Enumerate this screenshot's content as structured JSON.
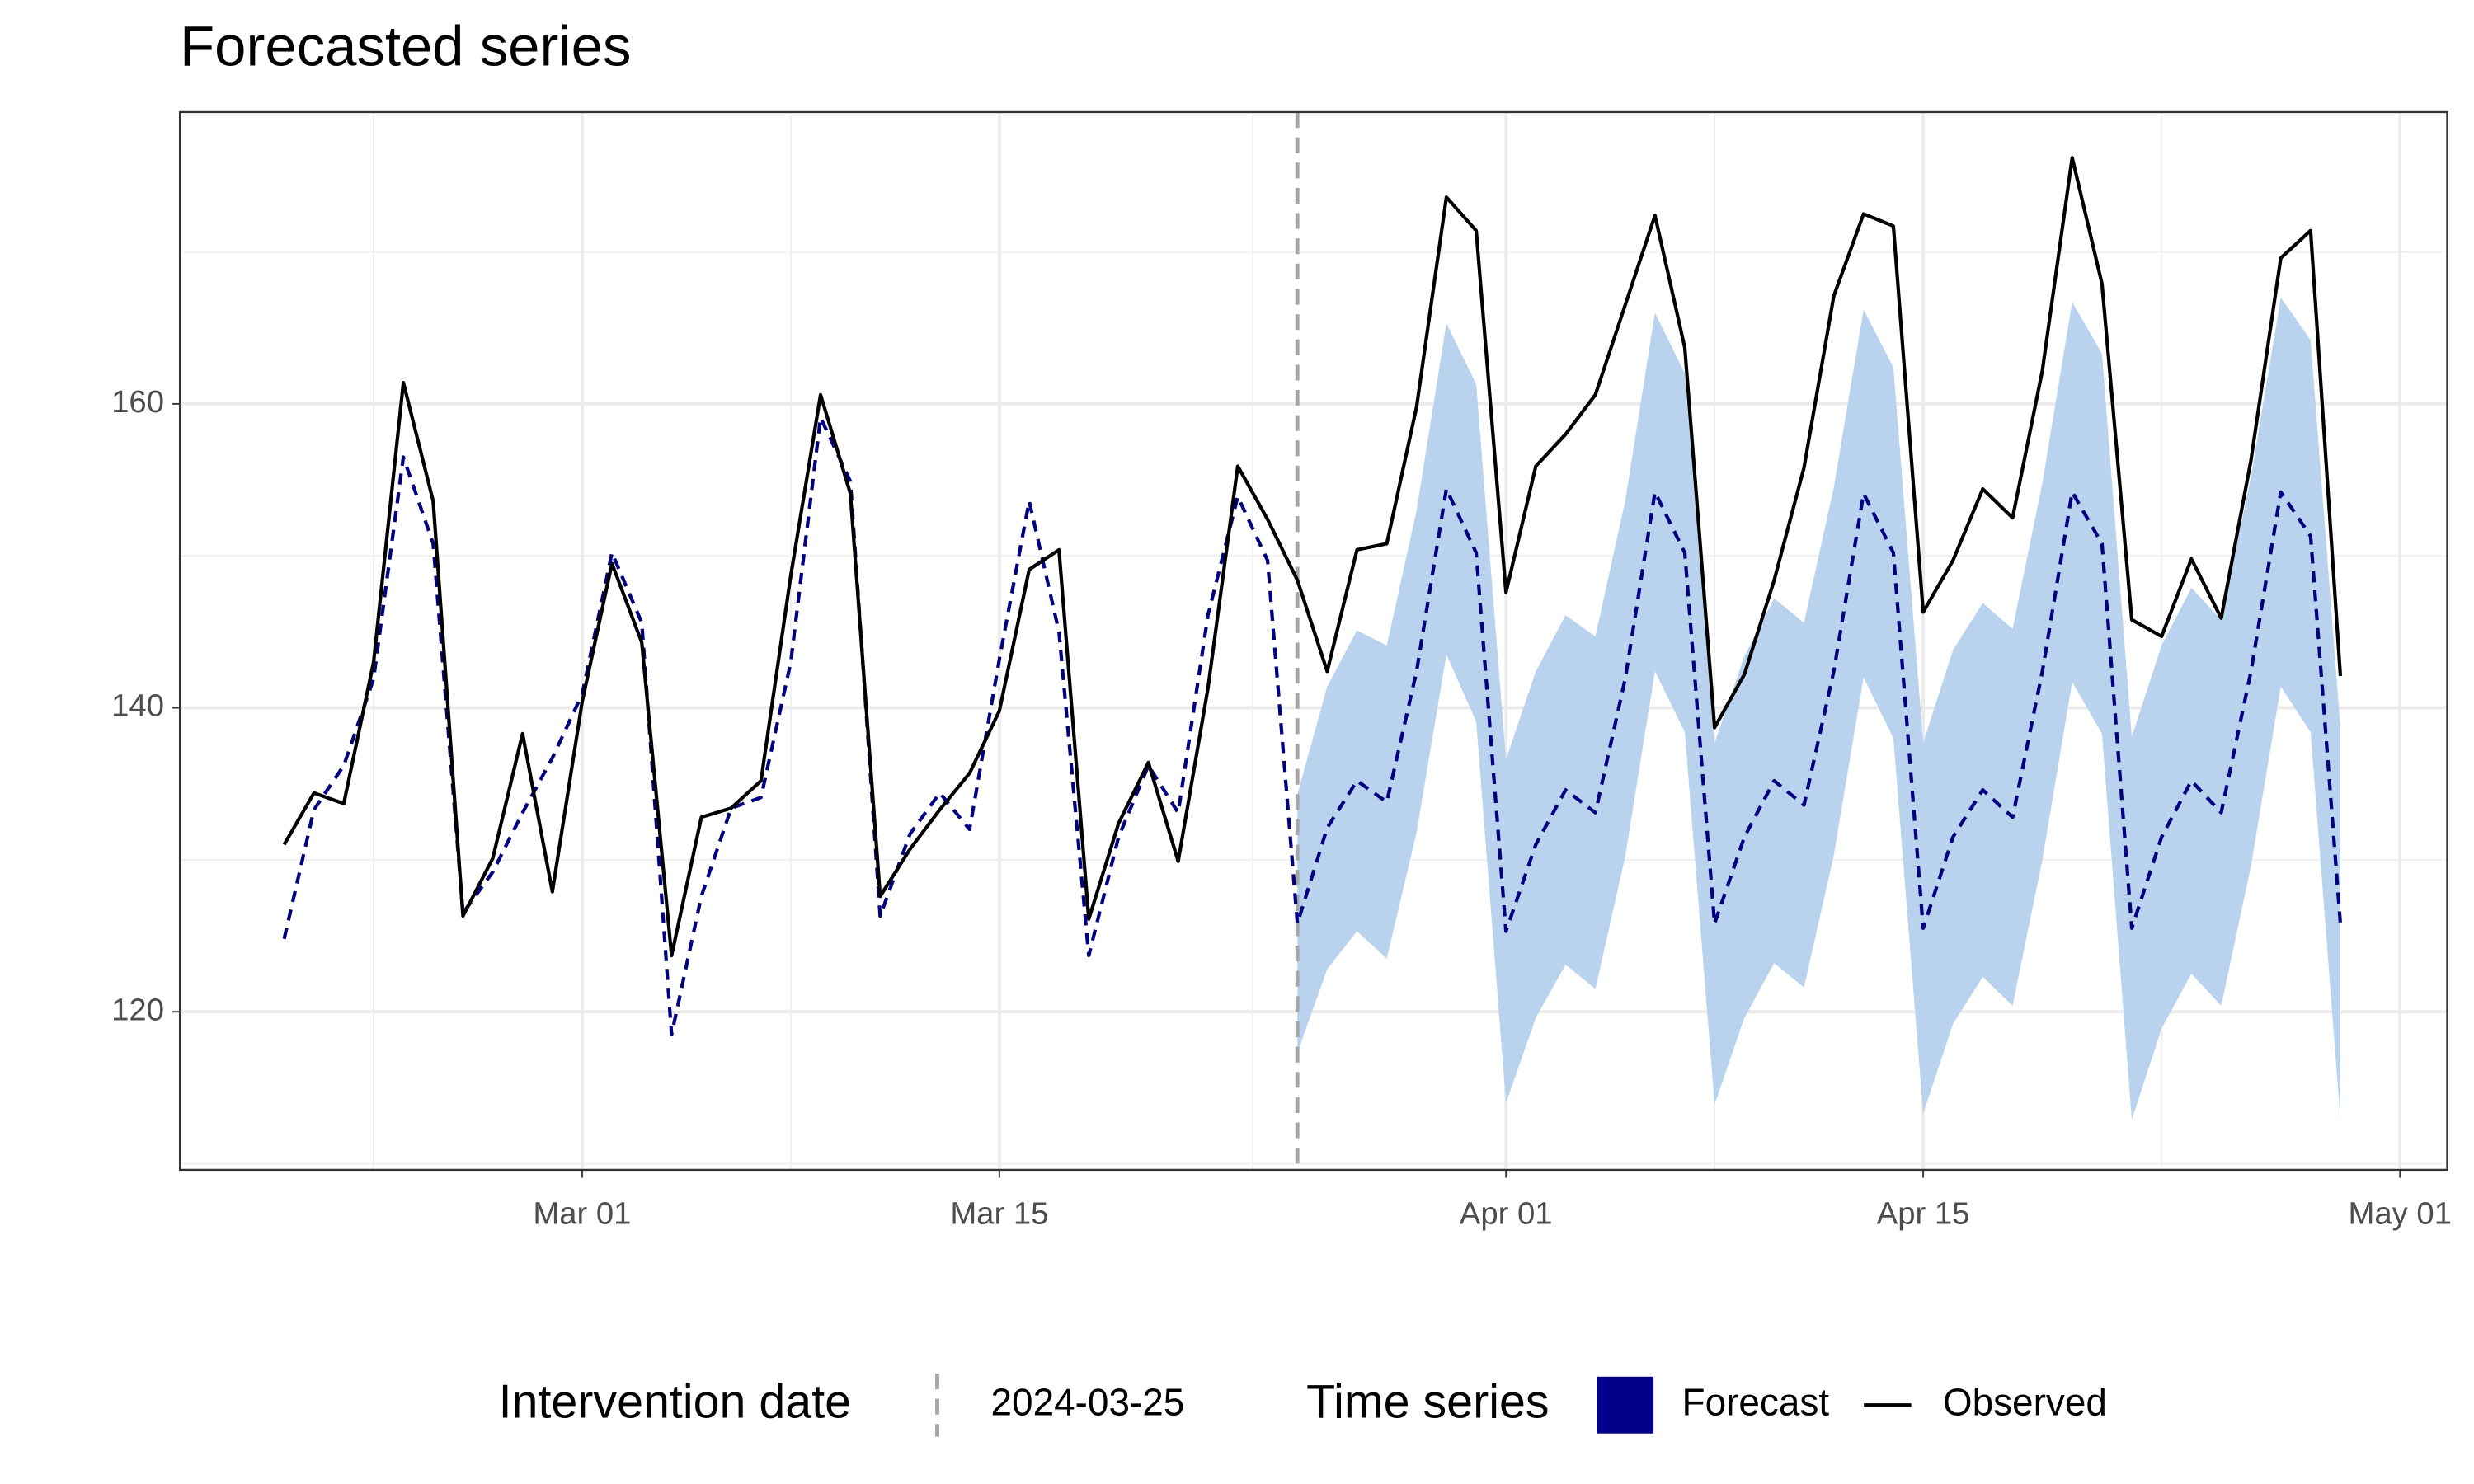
{
  "chart_data": {
    "type": "line",
    "title": "Forecasted series",
    "x": [
      "2024-02-20",
      "2024-02-21",
      "2024-02-22",
      "2024-02-23",
      "2024-02-24",
      "2024-02-25",
      "2024-02-26",
      "2024-02-27",
      "2024-02-28",
      "2024-02-29",
      "2024-03-01",
      "2024-03-02",
      "2024-03-03",
      "2024-03-04",
      "2024-03-05",
      "2024-03-06",
      "2024-03-07",
      "2024-03-08",
      "2024-03-09",
      "2024-03-10",
      "2024-03-11",
      "2024-03-12",
      "2024-03-13",
      "2024-03-14",
      "2024-03-15",
      "2024-03-16",
      "2024-03-17",
      "2024-03-18",
      "2024-03-19",
      "2024-03-20",
      "2024-03-21",
      "2024-03-22",
      "2024-03-23",
      "2024-03-24",
      "2024-03-25",
      "2024-03-26",
      "2024-03-27",
      "2024-03-28",
      "2024-03-29",
      "2024-03-30",
      "2024-03-31",
      "2024-04-01",
      "2024-04-02",
      "2024-04-03",
      "2024-04-04",
      "2024-04-05",
      "2024-04-06",
      "2024-04-07",
      "2024-04-08",
      "2024-04-09",
      "2024-04-10",
      "2024-04-11",
      "2024-04-12",
      "2024-04-13",
      "2024-04-14",
      "2024-04-15",
      "2024-04-16",
      "2024-04-17",
      "2024-04-18",
      "2024-04-19",
      "2024-04-20",
      "2024-04-21",
      "2024-04-22",
      "2024-04-23",
      "2024-04-24",
      "2024-04-25",
      "2024-04-26",
      "2024-04-27",
      "2024-04-28",
      "2024-04-29"
    ],
    "series": [
      {
        "name": "Forecast",
        "color": "#00008B",
        "line_color": "#000080",
        "band_color": "#b9d3ee",
        "dashed": true,
        "values": [
          124.8,
          133.3,
          136.2,
          141.9,
          156.5,
          150.8,
          126.5,
          129.2,
          133.1,
          136.7,
          140.9,
          150.2,
          145.6,
          118.5,
          127.6,
          133.4,
          134.1,
          143.0,
          159.1,
          154.9,
          126.3,
          131.7,
          134.4,
          132.0,
          143.2,
          153.6,
          145.0,
          123.7,
          131.5,
          136.2,
          133.1,
          146.1,
          153.9,
          149.7,
          125.8,
          132.1,
          135.2,
          133.8,
          142.4,
          154.4,
          150.2,
          125.3,
          131.0,
          134.6,
          133.1,
          141.9,
          154.2,
          150.2,
          125.8,
          131.5,
          135.2,
          133.6,
          142.4,
          154.1,
          150.2,
          125.5,
          131.5,
          134.6,
          132.8,
          142.4,
          154.2,
          150.8,
          125.5,
          131.5,
          135.2,
          133.1,
          142.4,
          154.2,
          151.3,
          125.8
        ],
        "upper": [
          null,
          null,
          null,
          null,
          null,
          null,
          null,
          null,
          null,
          null,
          null,
          null,
          null,
          null,
          null,
          null,
          null,
          null,
          null,
          null,
          null,
          null,
          null,
          null,
          null,
          null,
          null,
          null,
          null,
          null,
          null,
          null,
          null,
          null,
          134.3,
          141.4,
          145.1,
          144.1,
          153.0,
          165.3,
          161.3,
          136.6,
          142.4,
          146.1,
          144.7,
          153.6,
          166.0,
          162.0,
          137.7,
          143.4,
          147.2,
          145.6,
          154.5,
          166.2,
          162.4,
          137.7,
          143.8,
          146.9,
          145.2,
          154.8,
          166.7,
          163.3,
          138.1,
          144.1,
          147.9,
          145.8,
          155.2,
          167.0,
          164.2,
          138.7
        ],
        "lower": [
          null,
          null,
          null,
          null,
          null,
          null,
          null,
          null,
          null,
          null,
          null,
          null,
          null,
          null,
          null,
          null,
          null,
          null,
          null,
          null,
          null,
          null,
          null,
          null,
          null,
          null,
          null,
          null,
          null,
          null,
          null,
          null,
          null,
          null,
          117.3,
          122.8,
          125.3,
          123.5,
          131.8,
          143.5,
          139.1,
          114.0,
          119.6,
          123.1,
          121.5,
          130.2,
          142.4,
          138.4,
          113.9,
          119.6,
          123.2,
          121.6,
          130.3,
          142.0,
          138.0,
          113.3,
          119.2,
          122.3,
          120.4,
          130.0,
          141.7,
          138.3,
          112.9,
          118.9,
          122.5,
          120.4,
          129.6,
          141.4,
          138.4,
          112.9
        ]
      },
      {
        "name": "Observed",
        "color": "#000000",
        "dashed": false,
        "values": [
          131.0,
          134.4,
          133.7,
          143.0,
          161.4,
          153.6,
          126.3,
          130.1,
          138.3,
          127.9,
          140.4,
          149.5,
          144.3,
          123.7,
          132.8,
          133.4,
          135.2,
          148.7,
          160.6,
          154.1,
          127.6,
          130.7,
          133.3,
          135.7,
          139.8,
          149.1,
          150.4,
          126.1,
          132.4,
          136.4,
          129.9,
          141.3,
          155.9,
          152.4,
          148.4,
          142.4,
          150.4,
          150.8,
          159.8,
          173.6,
          171.4,
          147.6,
          155.9,
          158.0,
          160.6,
          166.5,
          172.4,
          163.7,
          138.7,
          142.2,
          148.4,
          155.8,
          167.1,
          172.5,
          171.7,
          146.3,
          149.7,
          154.4,
          152.5,
          162.2,
          176.2,
          167.9,
          145.8,
          144.7,
          149.8,
          145.9,
          156.3,
          169.6,
          171.4,
          142.1
        ]
      }
    ],
    "intervention_date": "2024-03-25",
    "intervention_color": "#a6a6a6",
    "legend_titles": [
      "Intervention date",
      "Time series"
    ],
    "xlim": [
      "2024-02-16T12:00",
      "2024-05-02T14:00"
    ],
    "xticks": [
      {
        "value": "2024-03-01",
        "label": "Mar 01"
      },
      {
        "value": "2024-03-15",
        "label": "Mar 15"
      },
      {
        "value": "2024-04-01",
        "label": "Apr 01"
      },
      {
        "value": "2024-04-15",
        "label": "Apr 15"
      },
      {
        "value": "2024-05-01",
        "label": "May 01"
      }
    ],
    "ylim": [
      109.6,
      179.2
    ],
    "yticks": [
      120,
      140,
      160
    ],
    "grid": true,
    "legend": "bottom"
  }
}
